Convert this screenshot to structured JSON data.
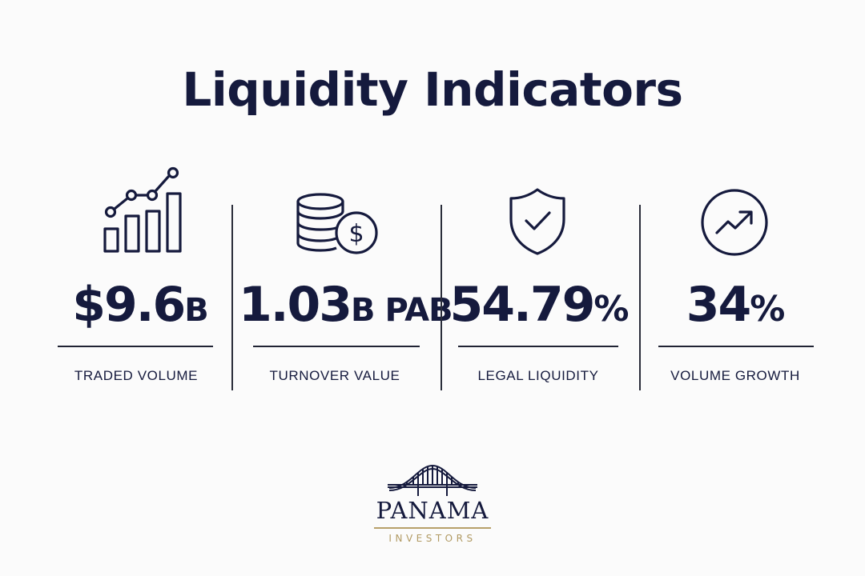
{
  "title": "Liquidity Indicators",
  "metrics": [
    {
      "value": "$9.6",
      "unit": "B",
      "label": "TRADED VOLUME",
      "icon": "bar-chart-growth-icon"
    },
    {
      "value": "1.03",
      "unit": "B PAB",
      "label": "TURNOVER VALUE",
      "icon": "coin-stack-dollar-icon"
    },
    {
      "value": "54.79",
      "unit": "%",
      "label": "LEGAL LIQUIDITY",
      "icon": "shield-check-icon"
    },
    {
      "value": "34",
      "unit": "%",
      "label": "VOLUME GROWTH",
      "icon": "trend-up-circle-icon"
    }
  ],
  "brand": {
    "name": "PANAMA",
    "tagline": "INVESTORS",
    "icon": "bridge-logo-icon"
  },
  "colors": {
    "navy": "#151a3d",
    "gold": "#b7a06a",
    "background": "#fbfbfb"
  }
}
